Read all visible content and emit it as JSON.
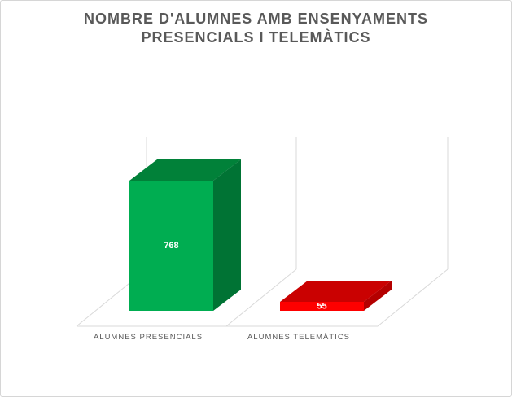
{
  "chart_data": {
    "type": "bar",
    "subtype": "3d-column",
    "title": "NOMBRE D'ALUMNES AMB ENSENYAMENTS PRESENCIALS I TELEMÀTICS",
    "title_lines": [
      "NOMBRE D'ALUMNES AMB ENSENYAMENTS",
      "PRESENCIALS I TELEMÀTICS"
    ],
    "categories": [
      "ALUMNES PRESENCIALS",
      "ALUMNES TELEMÀTICS"
    ],
    "values": [
      768,
      55
    ],
    "data_labels": [
      "768",
      "55"
    ],
    "series": [
      {
        "name": "Nombre d'alumnes",
        "values": [
          768,
          55
        ]
      }
    ],
    "xlabel": "",
    "ylabel": "",
    "ylim": [
      0,
      1000
    ],
    "legend": "none",
    "value_axis_visible": false,
    "grid": "3d back wall and floor outlines only, no horizontal gridlines",
    "data_label_color": "#FFFFFF",
    "bar_colors": [
      {
        "front": "#00AD51",
        "top": "#018139",
        "side": "#007334"
      },
      {
        "front": "#FE0000",
        "top": "#CA0101",
        "side": "#B40000"
      }
    ],
    "gridline_color": "#D9D9D9",
    "text_color": "#595959"
  },
  "canvas": {
    "background": "#FFFFFF",
    "border_color": "#D6D6D6"
  }
}
